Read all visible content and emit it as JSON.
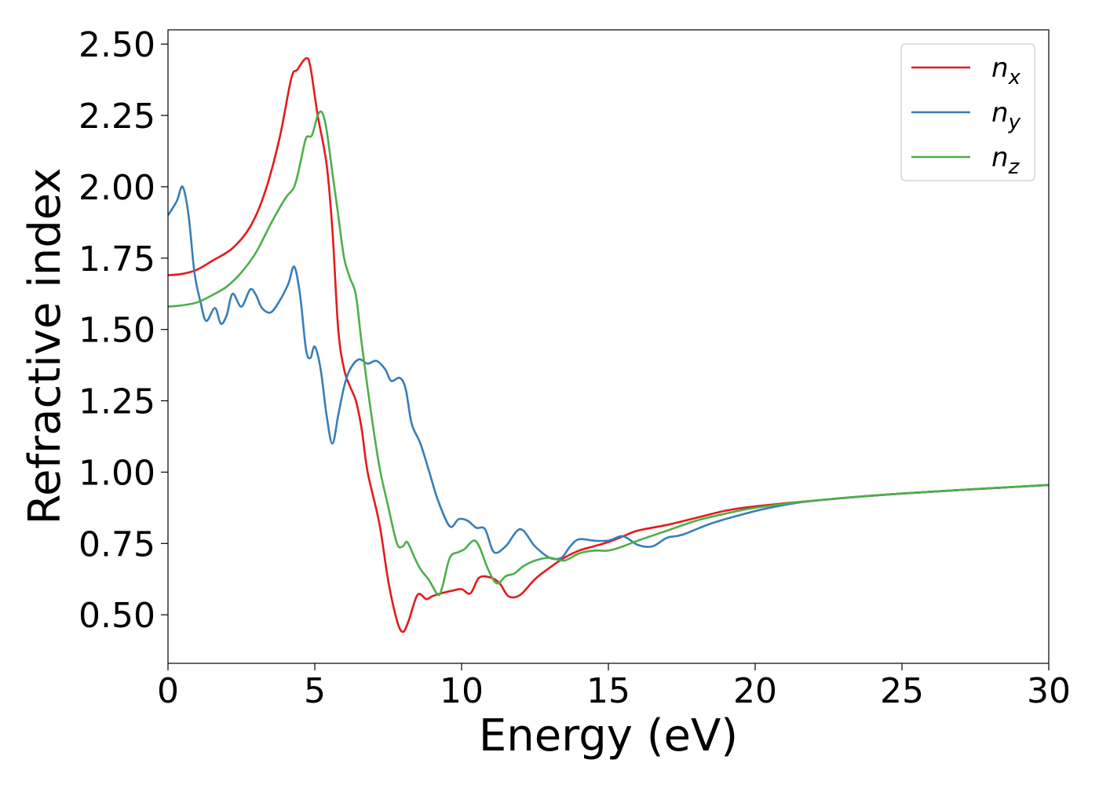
{
  "chart_data": {
    "type": "line",
    "title": "",
    "xlabel": "Energy (eV)",
    "ylabel": "Refractive index",
    "xlim": [
      0,
      30
    ],
    "ylim": [
      0.33,
      2.55
    ],
    "xticks": [
      0,
      5,
      10,
      15,
      20,
      25,
      30
    ],
    "xtick_labels": [
      "0",
      "5",
      "10",
      "15",
      "20",
      "25",
      "30"
    ],
    "yticks": [
      0.5,
      0.75,
      1.0,
      1.25,
      1.5,
      1.75,
      2.0,
      2.25,
      2.5
    ],
    "ytick_labels": [
      "0.50",
      "0.75",
      "1.00",
      "1.25",
      "1.50",
      "1.75",
      "2.00",
      "2.25",
      "2.50"
    ],
    "grid": false,
    "legend_position": "top-right",
    "series": [
      {
        "name": "n",
        "subscript": "x",
        "color": "#e41a1c",
        "points": [
          [
            0,
            1.69
          ],
          [
            0.5,
            1.695
          ],
          [
            1,
            1.71
          ],
          [
            1.5,
            1.74
          ],
          [
            2.2,
            1.785
          ],
          [
            2.8,
            1.86
          ],
          [
            3.3,
            1.98
          ],
          [
            3.8,
            2.17
          ],
          [
            4.2,
            2.38
          ],
          [
            4.4,
            2.41
          ],
          [
            4.7,
            2.45
          ],
          [
            4.85,
            2.42
          ],
          [
            5.1,
            2.25
          ],
          [
            5.4,
            2.08
          ],
          [
            5.6,
            1.85
          ],
          [
            5.8,
            1.5
          ],
          [
            6.0,
            1.36
          ],
          [
            6.2,
            1.3
          ],
          [
            6.4,
            1.25
          ],
          [
            6.6,
            1.15
          ],
          [
            6.8,
            1.0
          ],
          [
            7.2,
            0.82
          ],
          [
            7.5,
            0.62
          ],
          [
            7.8,
            0.48
          ],
          [
            8.0,
            0.44
          ],
          [
            8.2,
            0.48
          ],
          [
            8.5,
            0.57
          ],
          [
            8.8,
            0.555
          ],
          [
            9.0,
            0.565
          ],
          [
            9.3,
            0.575
          ],
          [
            9.7,
            0.585
          ],
          [
            10.0,
            0.59
          ],
          [
            10.3,
            0.575
          ],
          [
            10.6,
            0.63
          ],
          [
            11.0,
            0.63
          ],
          [
            11.3,
            0.61
          ],
          [
            11.6,
            0.565
          ],
          [
            12.0,
            0.57
          ],
          [
            12.5,
            0.625
          ],
          [
            13.0,
            0.665
          ],
          [
            13.5,
            0.7
          ],
          [
            14.0,
            0.725
          ],
          [
            14.5,
            0.74
          ],
          [
            15.0,
            0.755
          ],
          [
            15.5,
            0.775
          ],
          [
            16.0,
            0.795
          ],
          [
            17.0,
            0.815
          ],
          [
            18.0,
            0.84
          ],
          [
            19.0,
            0.865
          ],
          [
            20.0,
            0.88
          ],
          [
            22.0,
            0.9
          ],
          [
            25.0,
            0.925
          ],
          [
            30.0,
            0.955
          ]
        ]
      },
      {
        "name": "n",
        "subscript": "y",
        "color": "#377eb8",
        "points": [
          [
            0,
            1.9
          ],
          [
            0.3,
            1.95
          ],
          [
            0.5,
            2.0
          ],
          [
            0.7,
            1.9
          ],
          [
            0.9,
            1.7
          ],
          [
            1.1,
            1.6
          ],
          [
            1.3,
            1.53
          ],
          [
            1.6,
            1.575
          ],
          [
            1.8,
            1.52
          ],
          [
            2.0,
            1.55
          ],
          [
            2.2,
            1.625
          ],
          [
            2.5,
            1.58
          ],
          [
            2.8,
            1.64
          ],
          [
            3.0,
            1.62
          ],
          [
            3.2,
            1.575
          ],
          [
            3.5,
            1.56
          ],
          [
            3.8,
            1.6
          ],
          [
            4.1,
            1.66
          ],
          [
            4.3,
            1.72
          ],
          [
            4.5,
            1.62
          ],
          [
            4.7,
            1.43
          ],
          [
            4.85,
            1.4
          ],
          [
            5.0,
            1.44
          ],
          [
            5.2,
            1.36
          ],
          [
            5.4,
            1.2
          ],
          [
            5.6,
            1.1
          ],
          [
            5.8,
            1.2
          ],
          [
            6.0,
            1.3
          ],
          [
            6.2,
            1.36
          ],
          [
            6.5,
            1.395
          ],
          [
            6.8,
            1.38
          ],
          [
            7.1,
            1.39
          ],
          [
            7.4,
            1.36
          ],
          [
            7.6,
            1.32
          ],
          [
            7.9,
            1.33
          ],
          [
            8.1,
            1.29
          ],
          [
            8.3,
            1.17
          ],
          [
            8.6,
            1.1
          ],
          [
            8.9,
            1.0
          ],
          [
            9.2,
            0.9
          ],
          [
            9.6,
            0.81
          ],
          [
            9.9,
            0.835
          ],
          [
            10.2,
            0.83
          ],
          [
            10.5,
            0.805
          ],
          [
            10.8,
            0.8
          ],
          [
            11.1,
            0.72
          ],
          [
            11.5,
            0.74
          ],
          [
            12.0,
            0.8
          ],
          [
            12.5,
            0.74
          ],
          [
            13.0,
            0.7
          ],
          [
            13.4,
            0.7
          ],
          [
            13.7,
            0.74
          ],
          [
            14.0,
            0.765
          ],
          [
            14.5,
            0.76
          ],
          [
            15.0,
            0.76
          ],
          [
            15.5,
            0.775
          ],
          [
            16.0,
            0.745
          ],
          [
            16.5,
            0.74
          ],
          [
            17.0,
            0.77
          ],
          [
            17.5,
            0.78
          ],
          [
            18.5,
            0.82
          ],
          [
            19.5,
            0.85
          ],
          [
            20.5,
            0.875
          ],
          [
            22.0,
            0.9
          ],
          [
            25.0,
            0.925
          ],
          [
            30.0,
            0.955
          ]
        ]
      },
      {
        "name": "n",
        "subscript": "z",
        "color": "#4daf4a",
        "points": [
          [
            0,
            1.58
          ],
          [
            0.5,
            1.585
          ],
          [
            1,
            1.595
          ],
          [
            1.5,
            1.62
          ],
          [
            2,
            1.65
          ],
          [
            2.5,
            1.7
          ],
          [
            3,
            1.77
          ],
          [
            3.5,
            1.87
          ],
          [
            4,
            1.96
          ],
          [
            4.3,
            2.0
          ],
          [
            4.5,
            2.08
          ],
          [
            4.7,
            2.17
          ],
          [
            4.9,
            2.18
          ],
          [
            5.1,
            2.25
          ],
          [
            5.25,
            2.26
          ],
          [
            5.4,
            2.2
          ],
          [
            5.6,
            2.05
          ],
          [
            5.8,
            1.9
          ],
          [
            6.0,
            1.75
          ],
          [
            6.2,
            1.68
          ],
          [
            6.4,
            1.62
          ],
          [
            6.6,
            1.45
          ],
          [
            6.9,
            1.22
          ],
          [
            7.2,
            1.02
          ],
          [
            7.5,
            0.88
          ],
          [
            7.8,
            0.75
          ],
          [
            8.0,
            0.74
          ],
          [
            8.15,
            0.755
          ],
          [
            8.4,
            0.7
          ],
          [
            8.6,
            0.66
          ],
          [
            8.9,
            0.62
          ],
          [
            9.2,
            0.57
          ],
          [
            9.35,
            0.6
          ],
          [
            9.6,
            0.7
          ],
          [
            9.9,
            0.72
          ],
          [
            10.1,
            0.73
          ],
          [
            10.4,
            0.76
          ],
          [
            10.6,
            0.74
          ],
          [
            10.9,
            0.66
          ],
          [
            11.2,
            0.61
          ],
          [
            11.5,
            0.635
          ],
          [
            11.8,
            0.645
          ],
          [
            12.1,
            0.67
          ],
          [
            12.5,
            0.69
          ],
          [
            13.0,
            0.7
          ],
          [
            13.5,
            0.69
          ],
          [
            14.0,
            0.715
          ],
          [
            14.5,
            0.725
          ],
          [
            15.0,
            0.725
          ],
          [
            15.5,
            0.74
          ],
          [
            16.0,
            0.76
          ],
          [
            17.0,
            0.795
          ],
          [
            18.0,
            0.83
          ],
          [
            19.0,
            0.855
          ],
          [
            20.0,
            0.875
          ],
          [
            22.0,
            0.9
          ],
          [
            25.0,
            0.925
          ],
          [
            30.0,
            0.955
          ]
        ]
      }
    ]
  }
}
